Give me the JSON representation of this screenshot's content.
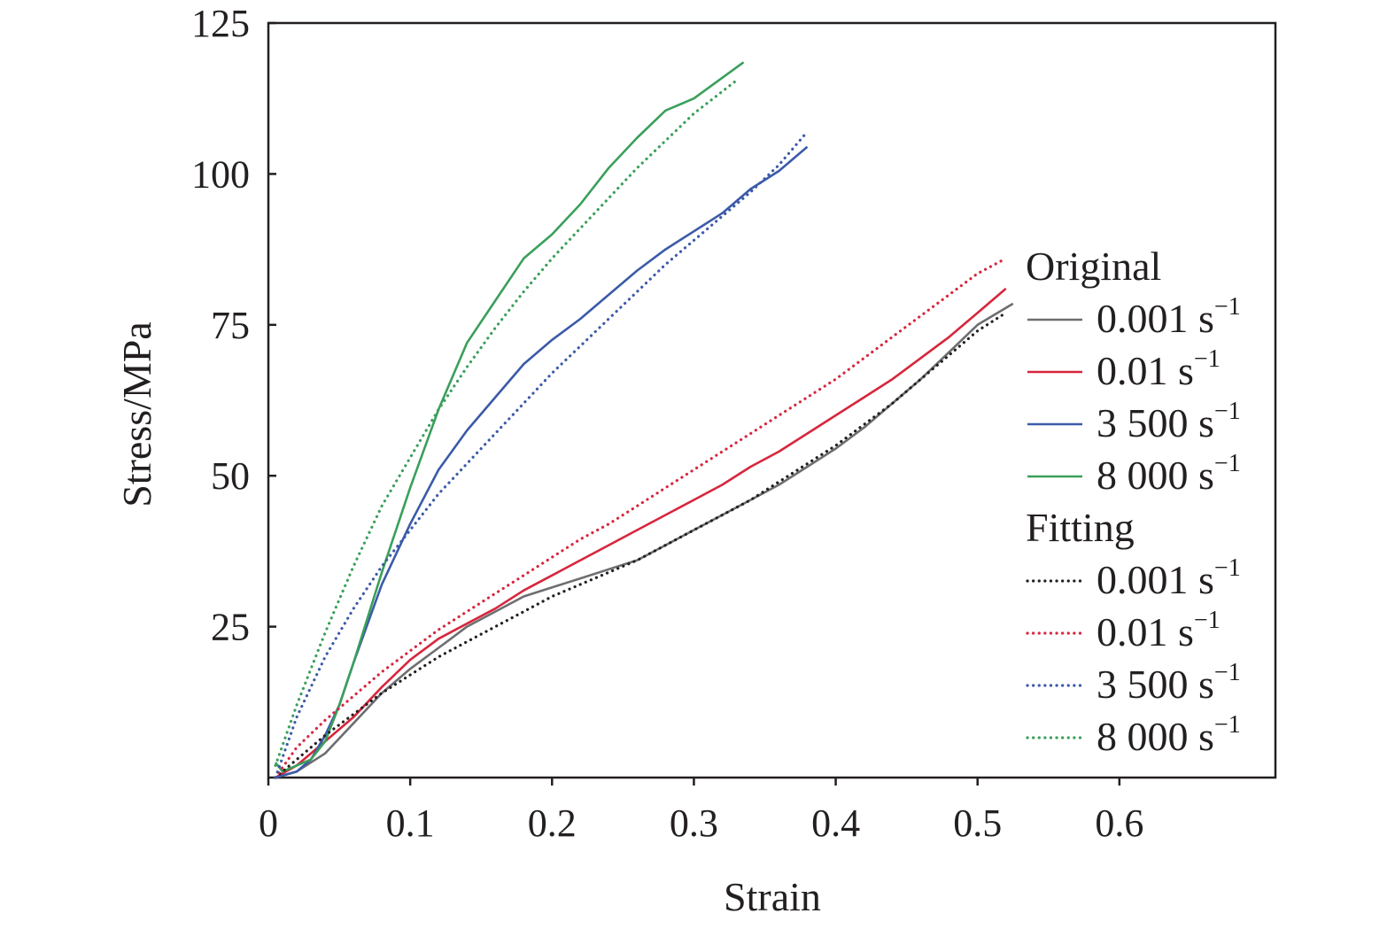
{
  "chart_data": {
    "type": "line",
    "title": "",
    "xlabel": "Strain",
    "ylabel": "Stress/MPa",
    "xlim": [
      0,
      0.71
    ],
    "ylim": [
      0,
      125
    ],
    "x_ticks": [
      0,
      0.1,
      0.2,
      0.3,
      0.4,
      0.5,
      0.6
    ],
    "x_tick_labels": [
      "0",
      "0.1",
      "0.2",
      "0.3",
      "0.4",
      "0.5",
      "0.6"
    ],
    "y_ticks": [
      25,
      50,
      75,
      100,
      125
    ],
    "y_tick_labels": [
      "25",
      "50",
      "75",
      "100",
      "125"
    ],
    "grid": false,
    "legend_position": "right",
    "legend_groups": [
      {
        "title": "Original",
        "style": "solid"
      },
      {
        "title": "Fitting",
        "style": "dotted"
      }
    ],
    "series": [
      {
        "name": "0.001 s",
        "exp": "−1",
        "group": "Original",
        "color": "#6d6e71",
        "style": "solid",
        "x": [
          0.005,
          0.02,
          0.04,
          0.06,
          0.08,
          0.1,
          0.12,
          0.14,
          0.16,
          0.18,
          0.2,
          0.22,
          0.24,
          0.26,
          0.28,
          0.3,
          0.32,
          0.34,
          0.36,
          0.38,
          0.4,
          0.42,
          0.44,
          0.46,
          0.48,
          0.5,
          0.525
        ],
        "y": [
          0,
          1,
          4,
          9,
          14,
          18,
          21.5,
          25,
          27.5,
          30,
          31.5,
          33,
          34.5,
          36,
          38.5,
          41,
          43.5,
          46,
          48.5,
          51.5,
          54.5,
          58,
          62,
          66,
          70.5,
          75,
          78.5
        ]
      },
      {
        "name": "0.01 s",
        "exp": "−1",
        "group": "Original",
        "color": "#d7263d",
        "style": "solid",
        "x": [
          0.005,
          0.02,
          0.04,
          0.06,
          0.08,
          0.1,
          0.12,
          0.14,
          0.16,
          0.18,
          0.2,
          0.22,
          0.24,
          0.26,
          0.28,
          0.3,
          0.32,
          0.34,
          0.36,
          0.38,
          0.4,
          0.42,
          0.44,
          0.46,
          0.48,
          0.5,
          0.52
        ],
        "y": [
          0,
          2,
          6,
          10,
          15,
          19.5,
          23,
          25.5,
          28,
          31,
          33.5,
          36,
          38.5,
          41,
          43.5,
          46,
          48.5,
          51.5,
          54,
          57,
          60,
          63,
          66,
          69.5,
          73,
          77,
          81
        ]
      },
      {
        "name": "3 500 s",
        "exp": "−1",
        "group": "Original",
        "color": "#3b5aa8",
        "style": "solid",
        "x": [
          0.005,
          0.02,
          0.03,
          0.04,
          0.05,
          0.06,
          0.08,
          0.1,
          0.12,
          0.14,
          0.16,
          0.18,
          0.2,
          0.22,
          0.24,
          0.26,
          0.28,
          0.3,
          0.32,
          0.34,
          0.36,
          0.38
        ],
        "y": [
          0,
          1,
          3,
          7,
          12,
          19,
          32,
          42,
          51,
          57.5,
          63,
          68.5,
          72.5,
          76,
          80,
          84,
          87.5,
          90.5,
          93.5,
          97.5,
          100.5,
          104.5
        ]
      },
      {
        "name": "8 000 s",
        "exp": "−1",
        "group": "Original",
        "color": "#3a9f5a",
        "style": "solid",
        "x": [
          0.005,
          0.01,
          0.02,
          0.03,
          0.04,
          0.05,
          0.06,
          0.08,
          0.1,
          0.12,
          0.14,
          0.16,
          0.18,
          0.2,
          0.22,
          0.24,
          0.26,
          0.28,
          0.3,
          0.335
        ],
        "y": [
          2.5,
          1,
          2,
          3,
          6,
          12,
          19,
          34,
          48,
          61,
          72,
          79,
          86,
          90,
          95,
          101,
          106,
          110.5,
          112.5,
          118.5
        ]
      },
      {
        "name": "0.001 s",
        "exp": "−1",
        "group": "Fitting",
        "color": "#231f20",
        "style": "dotted",
        "x": [
          0.005,
          0.02,
          0.04,
          0.06,
          0.08,
          0.1,
          0.12,
          0.14,
          0.16,
          0.18,
          0.2,
          0.22,
          0.24,
          0.26,
          0.28,
          0.3,
          0.32,
          0.34,
          0.36,
          0.38,
          0.4,
          0.42,
          0.44,
          0.46,
          0.48,
          0.5,
          0.52
        ],
        "y": [
          0,
          3,
          7,
          10.5,
          14,
          17,
          20,
          22.5,
          25,
          27.5,
          30,
          32,
          34,
          36,
          38.5,
          41,
          43.5,
          46,
          49,
          52,
          55,
          58.5,
          62,
          66,
          70,
          74,
          77
        ]
      },
      {
        "name": "0.01 s",
        "exp": "−1",
        "group": "Fitting",
        "color": "#d7263d",
        "style": "dotted",
        "x": [
          0.005,
          0.02,
          0.04,
          0.06,
          0.08,
          0.1,
          0.12,
          0.14,
          0.16,
          0.18,
          0.2,
          0.22,
          0.24,
          0.26,
          0.28,
          0.3,
          0.32,
          0.34,
          0.36,
          0.38,
          0.4,
          0.42,
          0.44,
          0.46,
          0.48,
          0.5,
          0.52
        ],
        "y": [
          0,
          5,
          9.5,
          13.5,
          17.5,
          21,
          24.5,
          27.5,
          30.5,
          33.5,
          36.5,
          39.5,
          42,
          45,
          48,
          51,
          54,
          57,
          60,
          63,
          66,
          69.5,
          73,
          76.5,
          80,
          83.5,
          86
        ]
      },
      {
        "name": "3 500 s",
        "exp": "−1",
        "group": "Fitting",
        "color": "#3b5aa8",
        "style": "dotted",
        "x": [
          0.005,
          0.02,
          0.04,
          0.06,
          0.08,
          0.1,
          0.12,
          0.14,
          0.16,
          0.18,
          0.2,
          0.22,
          0.24,
          0.26,
          0.28,
          0.3,
          0.32,
          0.34,
          0.36,
          0.38
        ],
        "y": [
          0,
          10,
          20,
          28,
          35,
          41,
          47,
          52,
          57,
          62,
          67,
          71.5,
          76,
          80.5,
          85,
          89,
          93,
          97,
          101.5,
          107
        ]
      },
      {
        "name": "8 000 s",
        "exp": "−1",
        "group": "Fitting",
        "color": "#3a9f5a",
        "style": "dotted",
        "x": [
          0.005,
          0.02,
          0.04,
          0.06,
          0.08,
          0.1,
          0.12,
          0.14,
          0.16,
          0.18,
          0.2,
          0.22,
          0.24,
          0.26,
          0.28,
          0.3,
          0.33
        ],
        "y": [
          2,
          12,
          24,
          35,
          45,
          53,
          61,
          68,
          74.5,
          80.5,
          86,
          91,
          96,
          101,
          105.5,
          110,
          115.5
        ]
      }
    ]
  }
}
